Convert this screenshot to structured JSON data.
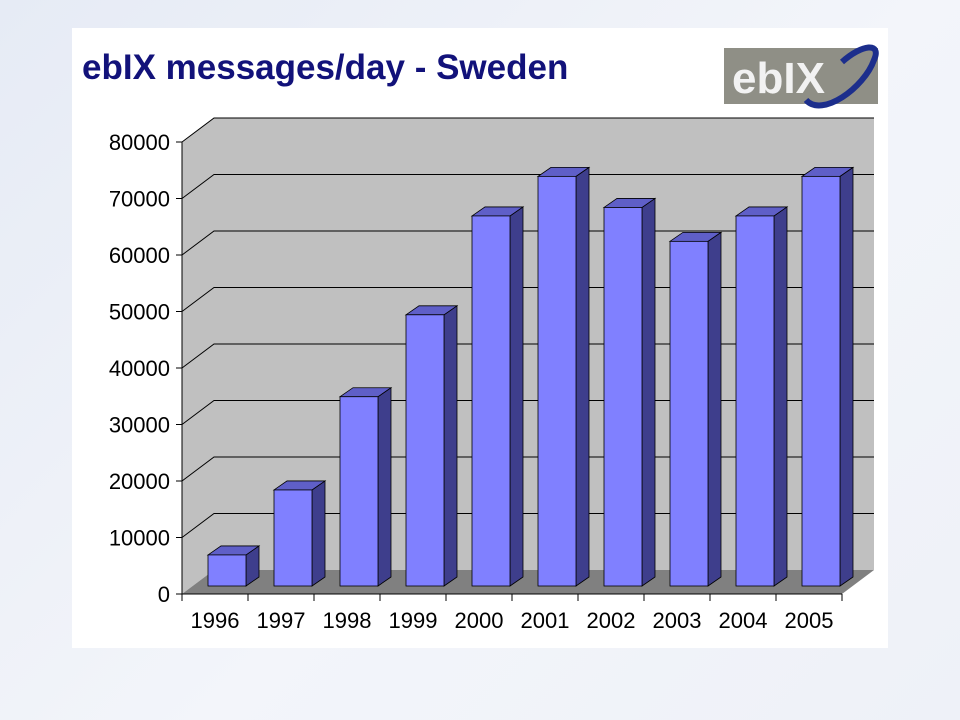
{
  "title": "ebIX messages/day - Sweden",
  "logo": {
    "text": "ebIX",
    "bg": "#8f8f86",
    "text_color": "#f2f2f2",
    "swoosh_color": "#1c2e8c"
  },
  "colors": {
    "bar_front": "#8080ff",
    "bar_side": "#3e3e8c",
    "bar_top": "#5f5fc8",
    "wall": "#c0c0c0",
    "floor": "#808080",
    "grid": "#000000"
  },
  "chart_data": {
    "type": "bar",
    "categories": [
      "1996",
      "1997",
      "1998",
      "1999",
      "2000",
      "2001",
      "2002",
      "2003",
      "2004",
      "2005"
    ],
    "values": [
      5500,
      17000,
      33500,
      48000,
      65500,
      72500,
      67000,
      61000,
      65500,
      72500
    ],
    "title": "ebIX messages/day - Sweden",
    "xlabel": "",
    "ylabel": "",
    "ylim": [
      0,
      80000
    ],
    "yticks": [
      "0",
      "10000",
      "20000",
      "30000",
      "40000",
      "50000",
      "60000",
      "70000",
      "80000"
    ],
    "grid": true,
    "three_d": true
  }
}
